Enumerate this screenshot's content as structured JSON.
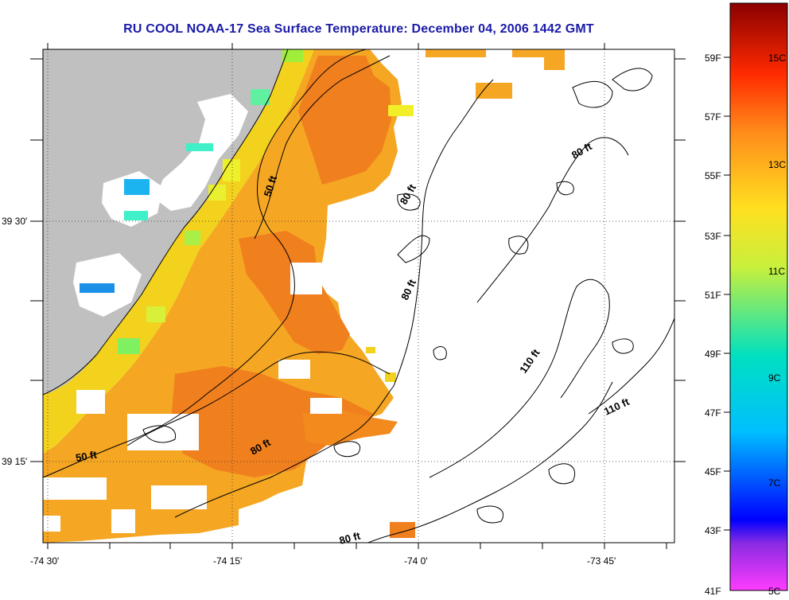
{
  "title": "RU COOL  NOAA-17  Sea Surface Temperature:  December 04, 2006 1442 GMT",
  "axes": {
    "x_ticks": [
      "-74 30'",
      "-74 15'",
      "-74 0'",
      "-73 45'"
    ],
    "y_ticks": [
      "39 30'",
      "39 15'"
    ]
  },
  "contour_labels": [
    "50 ft",
    "80 ft",
    "80 ft",
    "80 ft",
    "110 ft",
    "110 ft",
    "50 ft",
    "80 ft",
    "80 ft"
  ],
  "colorbar": {
    "fahrenheit_labels": [
      "59F",
      "57F",
      "55F",
      "53F",
      "51F",
      "49F",
      "47F",
      "45F",
      "43F",
      "41F"
    ],
    "celsius_labels": [
      "15C",
      "13C",
      "11C",
      "9C",
      "7C",
      "5C"
    ]
  },
  "colors": {
    "land": "#c0c0c0",
    "title": "#1a1aa8",
    "sst_warm": "#f5a623",
    "sst_orange": "#f07f1e",
    "sst_yellow": "#f2d21c",
    "sst_green": "#9fef3a"
  }
}
